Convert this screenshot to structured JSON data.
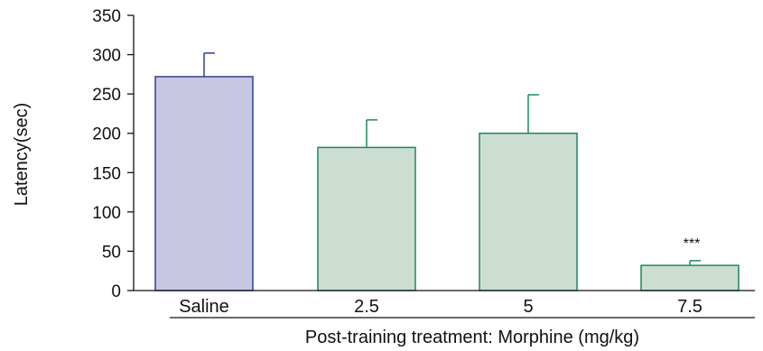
{
  "chart_data": {
    "type": "bar",
    "categories": [
      "Saline",
      "2.5",
      "5",
      "7.5"
    ],
    "values": [
      272,
      182,
      200,
      32
    ],
    "error_up": [
      30,
      35,
      49,
      6
    ],
    "significance": [
      "",
      "",
      "",
      "***"
    ],
    "bar_fill": [
      "#c8c7e1",
      "#ccddd1",
      "#ccddd1",
      "#ccddd1"
    ],
    "bar_stroke": [
      "#2e3f8f",
      "#1a8a57",
      "#1a8a57",
      "#1a8a57"
    ],
    "ylabel": "Latency(sec)",
    "xlabel": "Post-training treatment: Morphine (mg/kg)",
    "ylim": [
      0,
      350
    ],
    "yticks": [
      0,
      50,
      100,
      150,
      200,
      250,
      300,
      350
    ],
    "grid": false,
    "legend": "none"
  }
}
